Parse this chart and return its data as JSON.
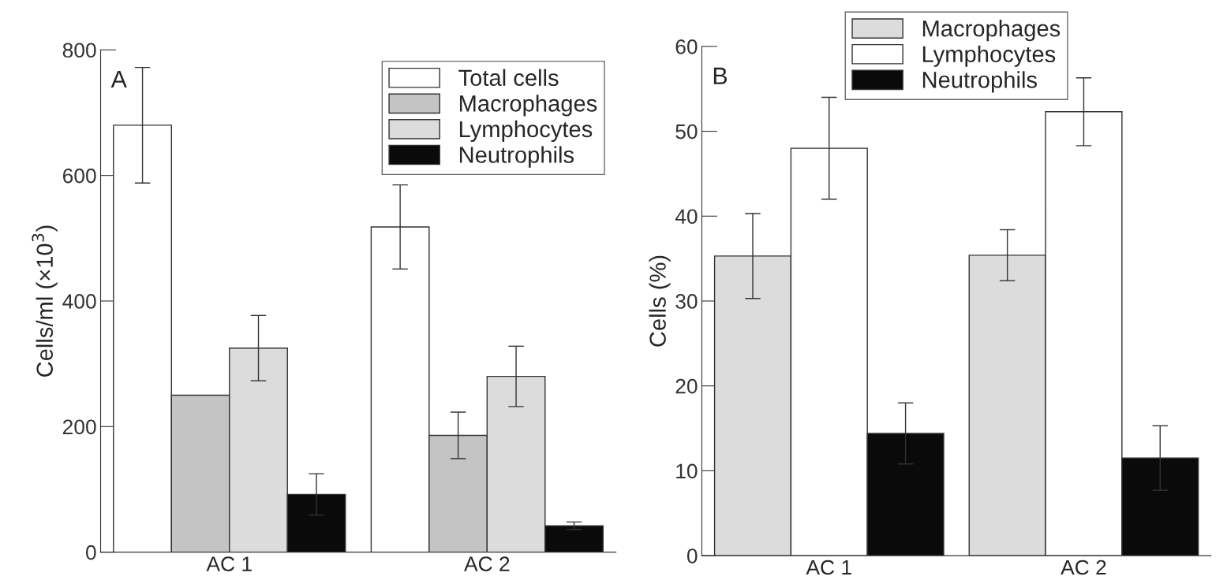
{
  "chart_data": [
    {
      "type": "bar",
      "categories": [
        "AC 1",
        "AC 2"
      ],
      "ylabel": "Cells/ml (×10$^{3}$)",
      "ylim": [
        0,
        800
      ],
      "yticks": [
        0,
        200,
        400,
        600,
        800
      ],
      "grid": false,
      "legend": "top right",
      "annotations": [
        "A"
      ],
      "series": [
        {
          "name": "Total cells",
          "color": "#ffffff",
          "values": [
            680,
            518
          ],
          "errors": [
            92,
            67
          ]
        },
        {
          "name": "Macrophages",
          "color": "#c4c4c4",
          "values": [
            250,
            186
          ],
          "errors": [
            null,
            37
          ]
        },
        {
          "name": "Lymphocytes",
          "color": "#dcdcdc",
          "values": [
            325,
            280
          ],
          "errors": [
            52,
            48
          ]
        },
        {
          "name": "Neutrophils",
          "color": "#0a0a0a",
          "values": [
            92,
            42
          ],
          "errors": [
            33,
            6
          ]
        }
      ]
    },
    {
      "type": "bar",
      "categories": [
        "AC 1",
        "AC 2"
      ],
      "ylabel": "Cells (%)",
      "ylim": [
        0,
        60
      ],
      "yticks": [
        0,
        10,
        20,
        30,
        40,
        50,
        60
      ],
      "grid": false,
      "legend": "top",
      "annotations": [
        "B"
      ],
      "series": [
        {
          "name": "Macrophages",
          "color": "#dcdcdc",
          "values": [
            35.3,
            35.4
          ],
          "errors": [
            5,
            3
          ]
        },
        {
          "name": "Lymphocytes",
          "color": "#ffffff",
          "values": [
            48.0,
            52.3
          ],
          "errors": [
            6,
            4
          ]
        },
        {
          "name": "Neutrophils",
          "color": "#0a0a0a",
          "values": [
            14.4,
            11.5
          ],
          "errors": [
            3.6,
            3.8
          ]
        }
      ]
    }
  ]
}
